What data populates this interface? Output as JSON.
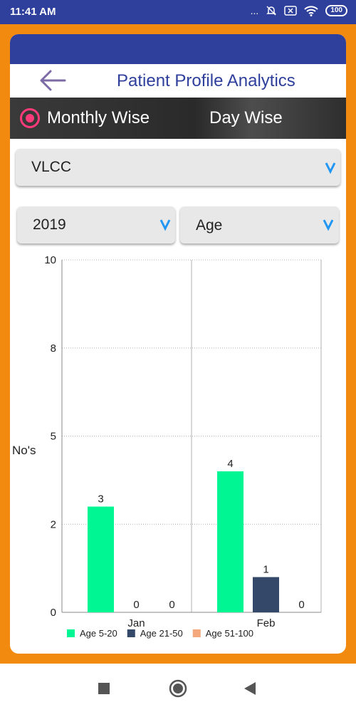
{
  "status_bar": {
    "time": "11:41 AM",
    "dots": "...",
    "battery": "100"
  },
  "header": {
    "title": "Patient Profile Analytics"
  },
  "mode_toggle": {
    "options": [
      "Monthly Wise",
      "Day Wise"
    ],
    "selected": "Monthly Wise"
  },
  "filters": {
    "center": "VLCC",
    "year": "2019",
    "group_by": "Age"
  },
  "colors": {
    "primary": "#2e3f9c",
    "accent_orange": "#f28a10",
    "radio_pink": "#ff3a7a",
    "chevron_blue": "#2196f3"
  },
  "icons": {
    "back": "arrow-left-icon",
    "chevron": "chevron-down-icon",
    "nav": [
      "square-icon",
      "circle-icon",
      "triangle-left-icon"
    ]
  },
  "chart_data": {
    "type": "bar",
    "categories": [
      "Jan",
      "Feb"
    ],
    "series": [
      {
        "name": "Age 5-20",
        "values": [
          3,
          4
        ],
        "color": "#00f593"
      },
      {
        "name": "Age 21-50",
        "values": [
          0,
          1
        ],
        "color": "#34496a"
      },
      {
        "name": "Age 51-100",
        "values": [
          0,
          0
        ],
        "color": "#f4a77a"
      }
    ],
    "ylabel": "No's",
    "ylim": [
      0,
      10
    ],
    "y_tick_labels": [
      "0",
      "2",
      "5",
      "8",
      "10"
    ],
    "grid": true,
    "legend": "bottom-left"
  }
}
